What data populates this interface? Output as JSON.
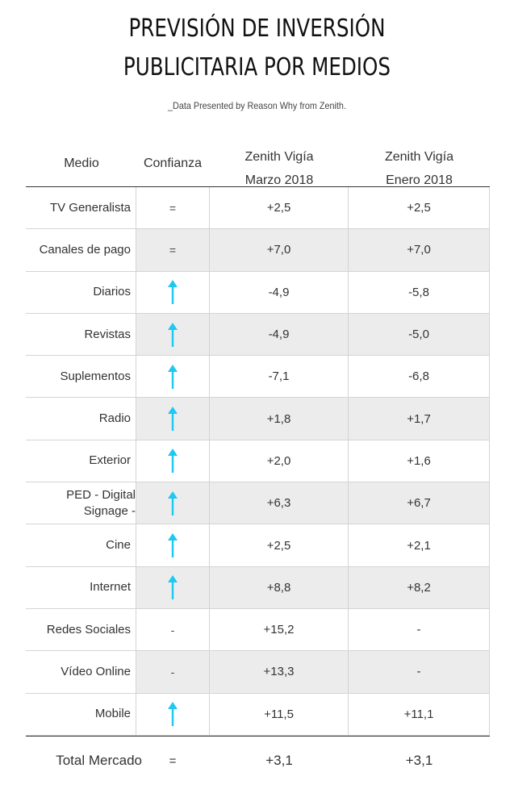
{
  "title_line1": "PREVISIÓN DE INVERSIÓN",
  "title_line2": "PUBLICITARIA POR MEDIOS",
  "subtitle": "_Data Presented by Reason Why from Zenith.",
  "headers": {
    "medio": "Medio",
    "confianza": "Confianza",
    "z1_line1": "Zenith Vigía",
    "z1_line2": "Marzo 2018",
    "z2_line1": "Zenith Vigía",
    "z2_line2": "Enero 2018"
  },
  "colors": {
    "arrow": "#1ec8f0",
    "shade": "#ececec",
    "rule": "#333333"
  },
  "chart_data": {
    "type": "table",
    "columns": [
      "Medio",
      "Confianza",
      "Zenith Vigía Marzo 2018",
      "Zenith Vigía Enero 2018"
    ],
    "rows": [
      {
        "medio": "TV Generalista",
        "confianza": "=",
        "marzo": "+2,5",
        "enero": "+2,5"
      },
      {
        "medio": "Canales de pago",
        "confianza": "=",
        "marzo": "+7,0",
        "enero": "+7,0"
      },
      {
        "medio": "Diarios",
        "confianza": "up-arrow",
        "marzo": "-4,9",
        "enero": "-5,8"
      },
      {
        "medio": "Revistas",
        "confianza": "up-arrow",
        "marzo": "-4,9",
        "enero": "-5,0"
      },
      {
        "medio": "Suplementos",
        "confianza": "up-arrow",
        "marzo": "-7,1",
        "enero": "-6,8"
      },
      {
        "medio": "Radio",
        "confianza": "up-arrow",
        "marzo": "+1,8",
        "enero": "+1,7"
      },
      {
        "medio": "Exterior",
        "confianza": "up-arrow",
        "marzo": "+2,0",
        "enero": "+1,6"
      },
      {
        "medio": "PED - Digital Signage -",
        "confianza": "up-arrow",
        "marzo": "+6,3",
        "enero": "+6,7"
      },
      {
        "medio": "Cine",
        "confianza": "up-arrow",
        "marzo": "+2,5",
        "enero": "+2,1"
      },
      {
        "medio": "Internet",
        "confianza": "up-arrow",
        "marzo": "+8,8",
        "enero": "+8,2"
      },
      {
        "medio": "Redes Sociales",
        "confianza": "-",
        "marzo": "+15,2",
        "enero": "-"
      },
      {
        "medio": "Vídeo Online",
        "confianza": "-",
        "marzo": "+13,3",
        "enero": "-"
      },
      {
        "medio": "Mobile",
        "confianza": "up-arrow",
        "marzo": "+11,5",
        "enero": "+11,1"
      }
    ],
    "total": {
      "medio": "Total Mercado",
      "confianza": "=",
      "marzo": "+3,1",
      "enero": "+3,1"
    }
  }
}
